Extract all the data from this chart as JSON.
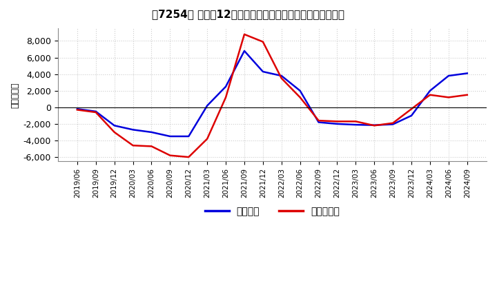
{
  "title": "［7254］ 利益の12か月移動合計の対前年同期増減額の推移",
  "ylabel": "（百万円）",
  "ylim": [
    -6500,
    9500
  ],
  "yticks": [
    -6000,
    -4000,
    -2000,
    0,
    2000,
    4000,
    6000,
    8000
  ],
  "background_color": "#ffffff",
  "grid_color": "#cccccc",
  "legend_labels": [
    "経常利益",
    "当期純利益"
  ],
  "line_colors": [
    "#0000dd",
    "#dd0000"
  ],
  "x_labels": [
    "2019/06",
    "2019/09",
    "2019/12",
    "2020/03",
    "2020/06",
    "2020/09",
    "2020/12",
    "2021/03",
    "2021/06",
    "2021/09",
    "2021/12",
    "2022/03",
    "2022/06",
    "2022/09",
    "2022/12",
    "2023/03",
    "2023/06",
    "2023/09",
    "2023/12",
    "2024/03",
    "2024/06",
    "2024/09"
  ],
  "keijo_rieki": [
    -200,
    -500,
    -2200,
    -2700,
    -3000,
    -3500,
    -3500,
    200,
    2500,
    6800,
    4300,
    3800,
    2000,
    -1800,
    -2000,
    -2100,
    -2150,
    -2050,
    -1000,
    2000,
    3800,
    4100
  ],
  "touki_jurieki": [
    -300,
    -600,
    -3000,
    -4600,
    -4700,
    -5800,
    -6000,
    -3800,
    1200,
    8800,
    7900,
    3500,
    1200,
    -1600,
    -1700,
    -1700,
    -2200,
    -1900,
    -200,
    1500,
    1200,
    1500
  ]
}
